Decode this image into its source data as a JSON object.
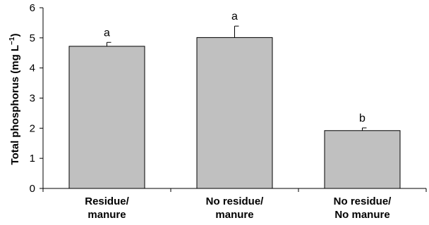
{
  "chart_data": {
    "type": "bar",
    "categories": [
      [
        "Residue/",
        "manure"
      ],
      [
        "No residue/",
        "manure"
      ],
      [
        "No residue/",
        "No manure"
      ]
    ],
    "values": [
      4.72,
      5.01,
      1.92
    ],
    "errors": [
      0.13,
      0.38,
      0.09
    ],
    "significance_letters": [
      "a",
      "a",
      "b"
    ],
    "ylabel_main": "Total phosphorus (mg L",
    "ylabel_sup": "−1",
    "ylabel_end": ")",
    "ylim": [
      0,
      6
    ],
    "yticks": [
      0,
      1,
      2,
      3,
      4,
      5,
      6
    ],
    "grid": false,
    "bar_color": "#c0c0c0",
    "bar_edge_color": "#000000"
  }
}
